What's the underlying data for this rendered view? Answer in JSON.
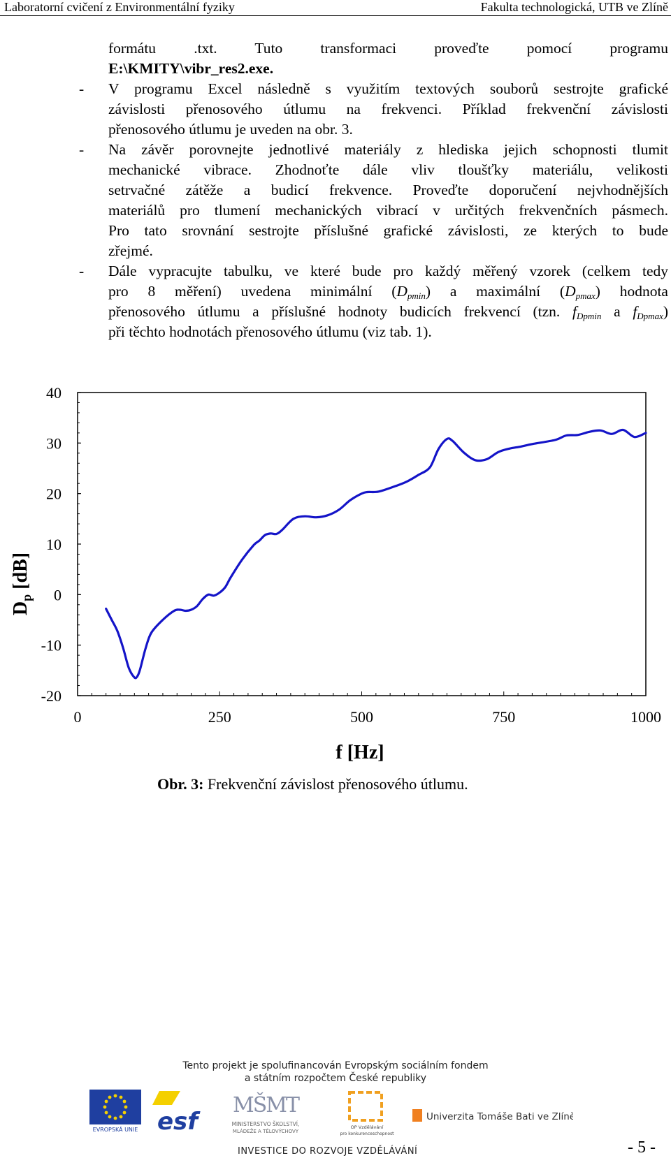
{
  "header": {
    "left": "Laboratorní cvičení z Environmentální fyziky",
    "right": "Fakulta technologická, UTB ve Zlíně"
  },
  "body": {
    "l1": "formátu .txt. Tuto transformaci proveďte pomocí programu",
    "l2": "E:\\KMITY\\vibr_res2.exe.",
    "l3": "V programu Excel následně s využitím textových souborů sestrojte grafické",
    "l4": "závislosti přenosového útlumu na frekvenci. Příklad frekvenční závislosti",
    "l5": "přenosového útlumu je uveden na obr. 3.",
    "l6": "Na závěr porovnejte jednotlivé materiály z hlediska jejich schopnosti tlumit",
    "l7": "mechanické vibrace. Zhodnoťte dále vliv tloušťky materiálu, velikosti",
    "l8": "setrvačné zátěže a budicí frekvence. Proveďte doporučení nejvhodnějších",
    "l9": "materiálů pro tlumení mechanických vibrací v určitých frekvenčních pásmech.",
    "l10": "Pro tato srovnání sestrojte příslušné grafické závislosti, ze kterých to bude",
    "l11": "zřejmé.",
    "l12": "Dále vypracujte tabulku, ve které bude pro každý měřený vzorek (celkem tedy",
    "l13a": "pro 8 měření) uvedena minimální (",
    "l13b": "D",
    "l13c": "pmin",
    "l13d": ") a maximální (",
    "l13e": "D",
    "l13f": "pmax",
    "l13g": ") hodnota",
    "l14a": "přenosového útlumu a příslušné hodnoty budicích frekvencí (tzn. ",
    "l14b": "f",
    "l14c": "Dpmin",
    "l14d": " a ",
    "l14e": "f",
    "l14f": "Dpmax",
    "l14g": ")",
    "l15": "při těchto hodnotách přenosového útlumu (viz tab. 1).",
    "dash": "-"
  },
  "chart_data": {
    "type": "line",
    "ylabel": "D",
    "ylabel_sub": "p",
    "ylabel_unit": " [dB]",
    "xlabel": "f [Hz]",
    "xlim": [
      0,
      1000
    ],
    "ylim": [
      -20,
      40
    ],
    "x_ticks": [
      "0",
      "250",
      "500",
      "750",
      "1000"
    ],
    "y_ticks": [
      "40",
      "30",
      "20",
      "10",
      "0",
      "-10",
      "-20"
    ],
    "grid": false,
    "line_color": "#1414c8",
    "series": [
      {
        "x": [
          50,
          60,
          70,
          80,
          90,
          100,
          105,
          110,
          120,
          130,
          150,
          170,
          180,
          190,
          200,
          210,
          220,
          230,
          240,
          250,
          260,
          270,
          290,
          310,
          320,
          330,
          340,
          350,
          360,
          380,
          400,
          420,
          440,
          460,
          480,
          500,
          510,
          530,
          560,
          580,
          600,
          620,
          635,
          650,
          660,
          680,
          700,
          720,
          740,
          760,
          780,
          800,
          840,
          860,
          880,
          900,
          920,
          940,
          960,
          980,
          1000
        ],
        "y": [
          -2.8,
          -5.0,
          -7.2,
          -10.5,
          -14.5,
          -16.4,
          -16.2,
          -14.8,
          -10.5,
          -7.5,
          -5.0,
          -3.2,
          -3.0,
          -3.2,
          -3.0,
          -2.3,
          -0.9,
          0.0,
          -0.2,
          0.4,
          1.5,
          3.5,
          7.0,
          9.8,
          10.7,
          11.8,
          12.1,
          12.0,
          12.8,
          15.0,
          15.5,
          15.3,
          15.7,
          16.8,
          18.7,
          20.0,
          20.3,
          20.4,
          21.5,
          22.4,
          23.7,
          25.2,
          28.8,
          30.8,
          30.4,
          28.1,
          26.6,
          26.8,
          28.2,
          28.9,
          29.3,
          29.8,
          30.6,
          31.5,
          31.6,
          32.2,
          32.5,
          31.8,
          32.6,
          31.2,
          32.0
        ]
      }
    ]
  },
  "caption": {
    "label": "Obr. 3:",
    "text": " Frekvenční závislost přenosového útlumu."
  },
  "footer": {
    "funding_line1": "Tento projekt je spolufinancován Evropským sociálním fondem",
    "funding_line2": "a státním rozpočtem České republiky",
    "eu_label": "EVROPSKÁ UNIE",
    "msmt_line1": "MINISTERSTVO ŠKOLSTVÍ,",
    "msmt_line2": "MLÁDEŽE A TĚLOVÝCHOVY",
    "op_line1": "OP Vzdělávání",
    "op_line2": "pro konkurenceschopnost",
    "utb": "Univerzita Tomáše Bati ve Zlíně",
    "investice": "INVESTICE DO ROZVOJE VZDĚLÁVÁNÍ",
    "page": "- 5 -"
  }
}
